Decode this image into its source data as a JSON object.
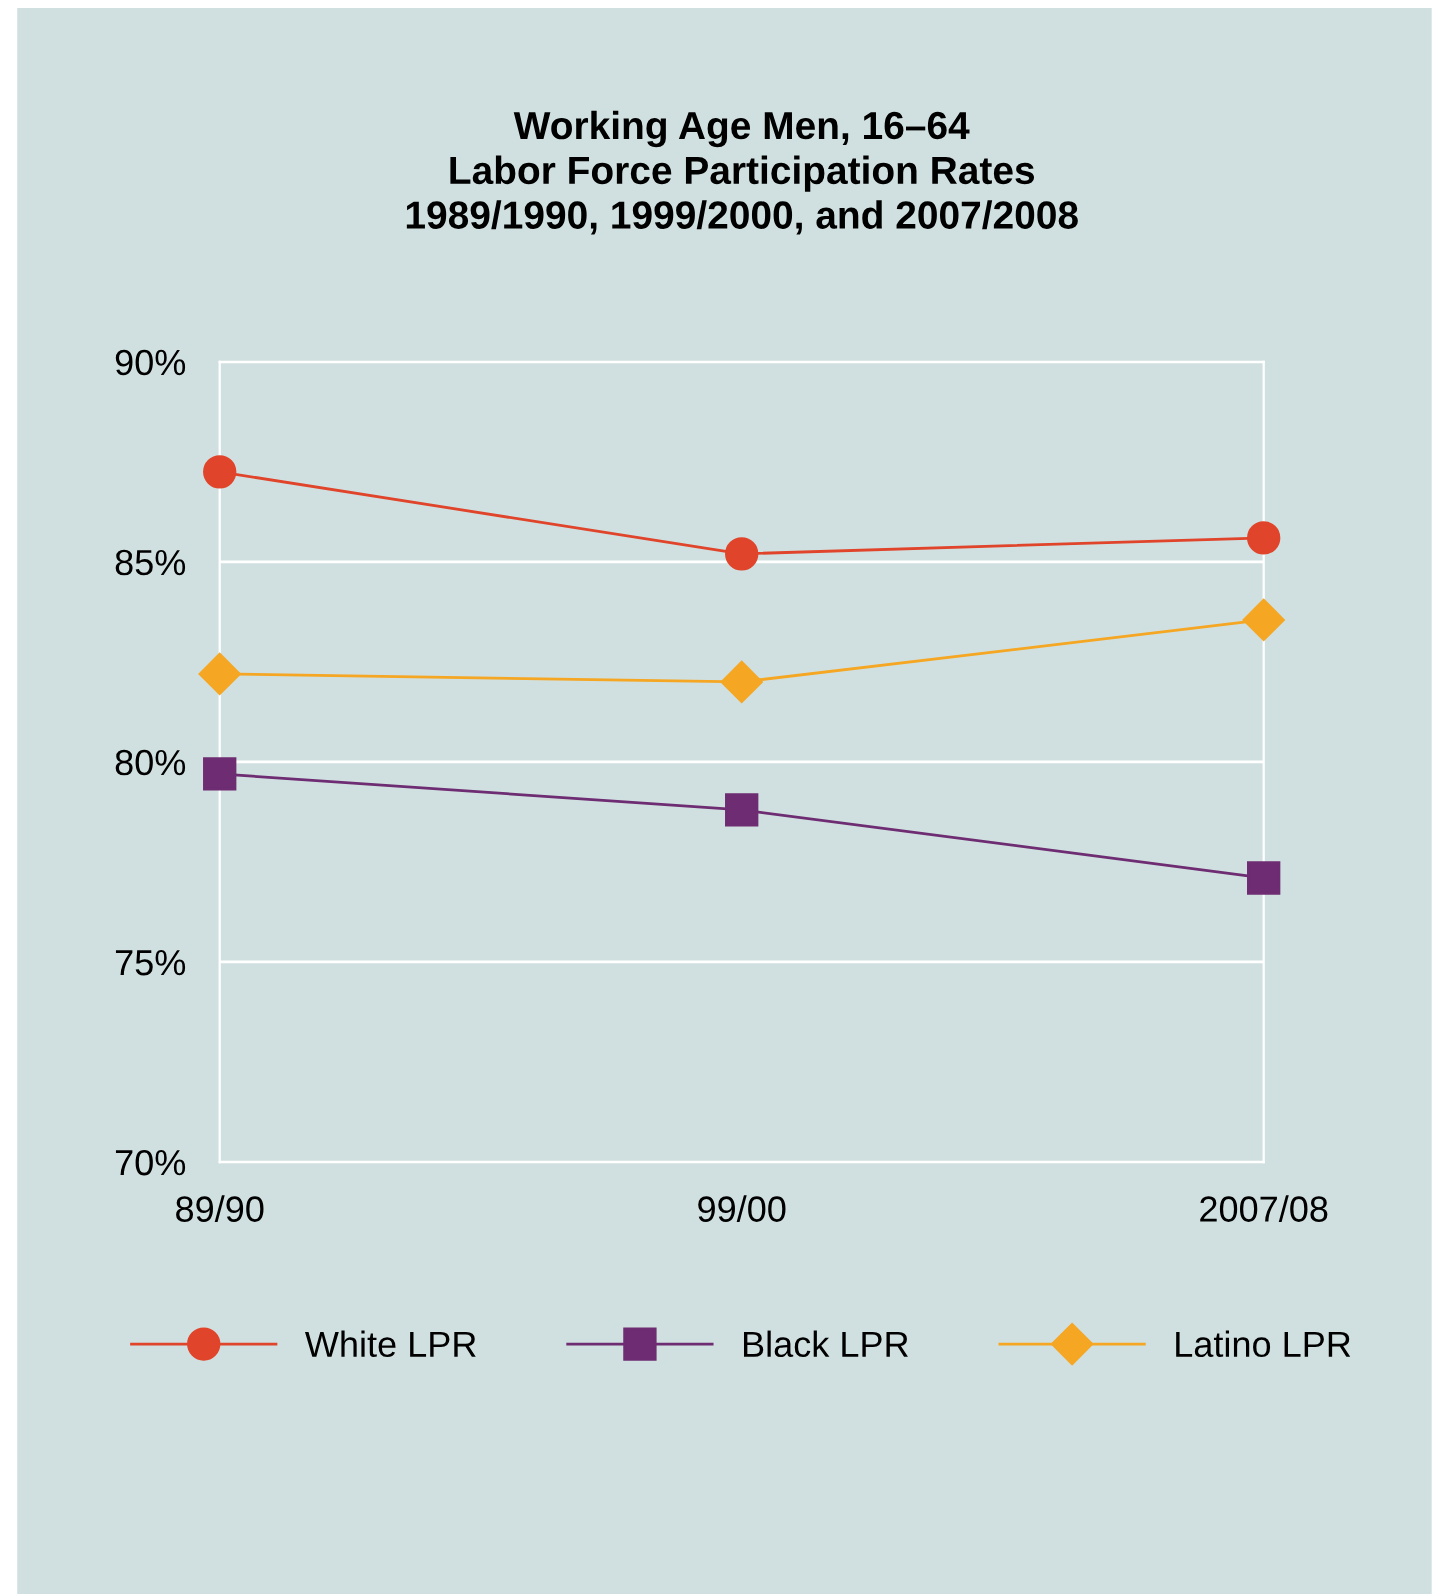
{
  "chart_data": {
    "type": "line",
    "title": "Working Age Men, 16–64\nLabor Force Participation Rates\n1989/1990, 1999/2000, and 2007/2008",
    "categories": [
      "89/90",
      "99/00",
      "2007/08"
    ],
    "series": [
      {
        "name": "White LPR",
        "color": "#e0442a",
        "marker": "circle",
        "values": [
          87.25,
          85.2,
          85.6
        ]
      },
      {
        "name": "Black LPR",
        "color": "#6e2c72",
        "marker": "square",
        "values": [
          79.7,
          78.8,
          77.1
        ]
      },
      {
        "name": "Latino LPR",
        "color": "#f5a623",
        "marker": "diamond",
        "values": [
          82.2,
          82.0,
          83.55
        ]
      }
    ],
    "ylim": [
      70,
      90
    ],
    "yticks": [
      {
        "value": 70,
        "label": "70%"
      },
      {
        "value": 75,
        "label": "75%"
      },
      {
        "value": 80,
        "label": "80%"
      },
      {
        "value": 85,
        "label": "85%"
      },
      {
        "value": 90,
        "label": "90%"
      }
    ],
    "grid": "y",
    "legend": "bottom",
    "line_style": "solid"
  }
}
